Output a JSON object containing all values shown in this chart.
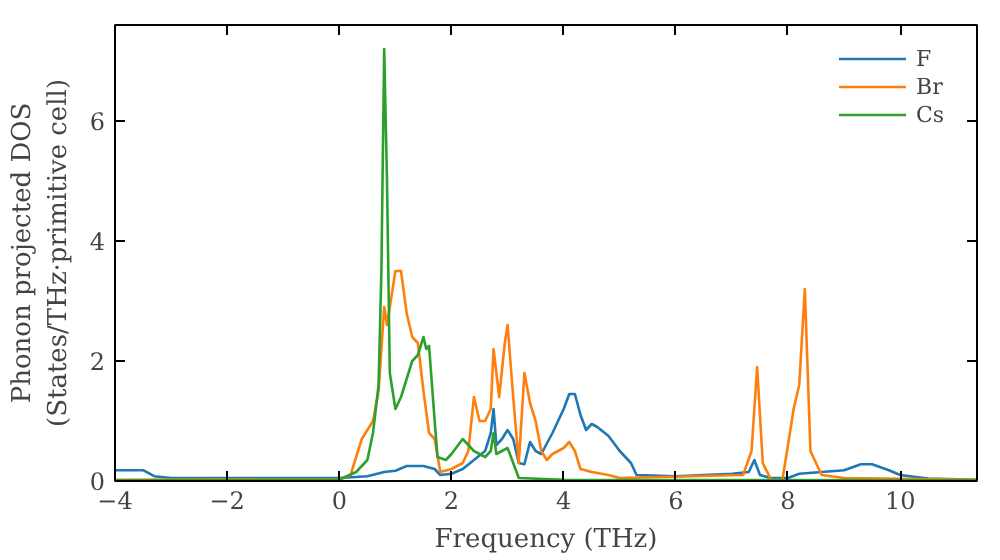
{
  "chart_data": {
    "type": "line",
    "xlabel": "Frequency (THz)",
    "ylabel": "Phonon projected DOS\n(States/THz·primitive cell)",
    "xlim": [
      -4,
      11.37
    ],
    "ylim": [
      0,
      7.6
    ],
    "xticks": [
      -4,
      -2,
      0,
      2,
      4,
      6,
      8,
      10
    ],
    "yticks": [
      0,
      2,
      4,
      6
    ],
    "legend": "top right",
    "grid": false,
    "series": [
      {
        "name": "F",
        "color": "#1f77b4",
        "x": [
          -4,
          -3.5,
          -3.3,
          -3,
          0,
          0.5,
          0.8,
          1.0,
          1.2,
          1.5,
          1.7,
          1.8,
          2.0,
          2.2,
          2.4,
          2.6,
          2.7,
          2.75,
          2.8,
          2.9,
          3.0,
          3.1,
          3.2,
          3.3,
          3.4,
          3.5,
          3.6,
          3.8,
          4.0,
          4.1,
          4.2,
          4.3,
          4.4,
          4.5,
          4.6,
          4.8,
          5.0,
          5.2,
          5.3,
          6,
          7,
          7.3,
          7.4,
          7.5,
          7.7,
          8,
          8.2,
          9,
          9.3,
          9.5,
          9.8,
          10,
          10.5,
          11.37
        ],
        "values": [
          0.18,
          0.18,
          0.08,
          0.05,
          0.05,
          0.08,
          0.15,
          0.17,
          0.25,
          0.25,
          0.2,
          0.1,
          0.12,
          0.2,
          0.35,
          0.5,
          0.8,
          1.2,
          0.6,
          0.7,
          0.85,
          0.7,
          0.3,
          0.28,
          0.65,
          0.5,
          0.45,
          0.8,
          1.2,
          1.45,
          1.45,
          1.1,
          0.85,
          0.95,
          0.9,
          0.75,
          0.5,
          0.3,
          0.1,
          0.08,
          0.12,
          0.15,
          0.35,
          0.1,
          0.05,
          0.05,
          0.12,
          0.18,
          0.28,
          0.28,
          0.18,
          0.1,
          0.04,
          0.02
        ]
      },
      {
        "name": "Br",
        "color": "#ff7f0e",
        "x": [
          -4,
          0,
          0.2,
          0.4,
          0.6,
          0.7,
          0.8,
          0.85,
          0.9,
          1.0,
          1.1,
          1.2,
          1.3,
          1.4,
          1.5,
          1.6,
          1.7,
          1.8,
          2.0,
          2.2,
          2.3,
          2.4,
          2.5,
          2.6,
          2.7,
          2.75,
          2.85,
          2.95,
          3.0,
          3.1,
          3.2,
          3.3,
          3.4,
          3.5,
          3.6,
          3.7,
          3.8,
          4.0,
          4.1,
          4.2,
          4.3,
          4.5,
          4.8,
          5.0,
          7.2,
          7.35,
          7.45,
          7.55,
          7.7,
          7.9,
          8.0,
          8.1,
          8.2,
          8.3,
          8.4,
          8.6,
          9,
          11.37
        ],
        "values": [
          0.02,
          0.03,
          0.1,
          0.7,
          1.0,
          1.5,
          2.9,
          2.6,
          2.9,
          3.5,
          3.5,
          2.8,
          2.4,
          2.3,
          1.5,
          0.8,
          0.7,
          0.15,
          0.2,
          0.3,
          0.5,
          1.4,
          1.0,
          1.0,
          1.2,
          2.2,
          1.4,
          2.3,
          2.6,
          1.4,
          0.3,
          1.8,
          1.3,
          1.0,
          0.5,
          0.35,
          0.45,
          0.55,
          0.65,
          0.5,
          0.2,
          0.15,
          0.1,
          0.05,
          0.1,
          0.5,
          1.9,
          0.3,
          0.02,
          0.02,
          0.6,
          1.2,
          1.6,
          3.2,
          0.5,
          0.1,
          0.05,
          0.02
        ]
      },
      {
        "name": "Cs",
        "color": "#2ca02c",
        "x": [
          -4,
          0,
          0.3,
          0.5,
          0.6,
          0.7,
          0.75,
          0.8,
          0.85,
          0.9,
          1.0,
          1.1,
          1.3,
          1.4,
          1.5,
          1.55,
          1.6,
          1.7,
          1.75,
          1.9,
          2.0,
          2.2,
          2.4,
          2.6,
          2.7,
          2.75,
          2.8,
          2.9,
          3.0,
          3.1,
          3.2,
          4,
          11.37
        ],
        "values": [
          0.01,
          0.02,
          0.15,
          0.35,
          0.8,
          1.6,
          3.5,
          7.2,
          5,
          1.8,
          1.2,
          1.4,
          2.0,
          2.1,
          2.4,
          2.2,
          2.25,
          1.0,
          0.4,
          0.35,
          0.45,
          0.7,
          0.5,
          0.4,
          0.5,
          0.8,
          0.45,
          0.5,
          0.55,
          0.3,
          0.05,
          0.02,
          0.01
        ]
      }
    ]
  }
}
